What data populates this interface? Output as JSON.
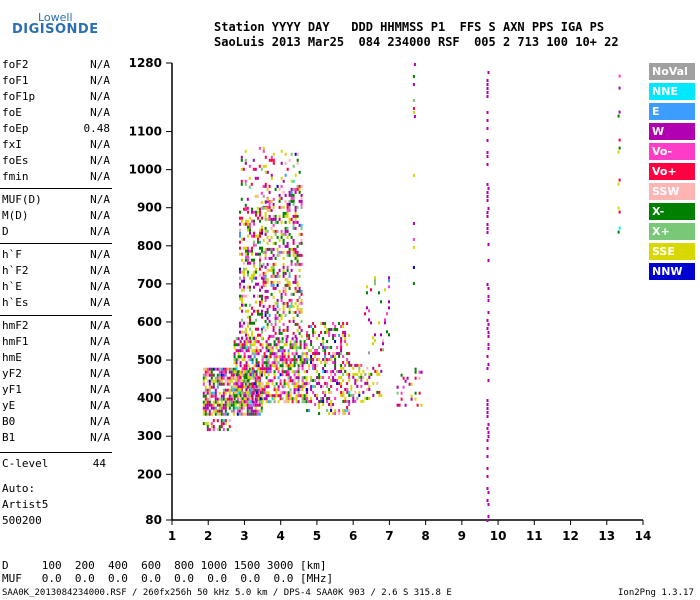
{
  "logo": {
    "line1": "Lowell",
    "line2": "DIGISONDE"
  },
  "header": {
    "row1": "Station YYYY DAY   DDD HHMMSS P1  FFS S AXN PPS IGA PS",
    "row2": "SaoLuis 2013 Mar25  084 234000 RSF  005 2 713 100 10+ 22"
  },
  "params_group1": [
    {
      "name": "foF2",
      "value": "N/A"
    },
    {
      "name": "foF1",
      "value": "N/A"
    },
    {
      "name": "foF1p",
      "value": "N/A"
    },
    {
      "name": "foE",
      "value": "N/A"
    },
    {
      "name": "foEp",
      "value": "0.48"
    },
    {
      "name": "fxI",
      "value": "N/A"
    },
    {
      "name": "foEs",
      "value": "N/A"
    },
    {
      "name": "fmin",
      "value": "N/A"
    }
  ],
  "params_group2": [
    {
      "name": "MUF(D)",
      "value": "N/A"
    },
    {
      "name": "M(D)",
      "value": "N/A"
    },
    {
      "name": "D",
      "value": "N/A"
    }
  ],
  "params_group3": [
    {
      "name": "h`F",
      "value": "N/A"
    },
    {
      "name": "h`F2",
      "value": "N/A"
    },
    {
      "name": "h`E",
      "value": "N/A"
    },
    {
      "name": "h`Es",
      "value": "N/A"
    }
  ],
  "params_group4": [
    {
      "name": "hmF2",
      "value": "N/A"
    },
    {
      "name": "hmF1",
      "value": "N/A"
    },
    {
      "name": "hmE",
      "value": "N/A"
    },
    {
      "name": "yF2",
      "value": "N/A"
    },
    {
      "name": "yF1",
      "value": "N/A"
    },
    {
      "name": "yE",
      "value": "N/A"
    },
    {
      "name": "B0",
      "value": "N/A"
    },
    {
      "name": "B1",
      "value": "N/A"
    }
  ],
  "clevel": {
    "name": "C-level",
    "value": "44"
  },
  "auto": [
    "Auto:",
    "Artist5",
    "500200"
  ],
  "footer": {
    "d_row": "D     100  200  400  600  800 1000 1500 3000 [km]",
    "muf_row": "MUF   0.0  0.0  0.0  0.0  0.0  0.0  0.0  0.0 [MHz]",
    "info_row": "SAA0K_2013084234000.RSF / 260fx256h 50 kHz 5.0 km / DPS-4 SAA0K 903 / 2.6 S 315.8 E",
    "version": "Ion2Png 1.3.17"
  },
  "legend": [
    {
      "label": "NoVal",
      "color": "#a0a0a0"
    },
    {
      "label": "NNE",
      "color": "#00e8ff"
    },
    {
      "label": "E",
      "color": "#3c9cff"
    },
    {
      "label": "W",
      "color": "#b000b0"
    },
    {
      "label": "Vo-",
      "color": "#ff3cc8"
    },
    {
      "label": "Vo+",
      "color": "#ff0040"
    },
    {
      "label": "SSW",
      "color": "#ffb4b4"
    },
    {
      "label": "X-",
      "color": "#008000"
    },
    {
      "label": "X+",
      "color": "#78c878"
    },
    {
      "label": "SSE",
      "color": "#d8d800"
    },
    {
      "label": "NNW",
      "color": "#0000d0"
    }
  ],
  "chart_data": {
    "type": "scatter",
    "title": "",
    "xlabel": "",
    "ylabel": "",
    "xlim": [
      1,
      14
    ],
    "ylim": [
      80,
      1280
    ],
    "xticks": [
      "1",
      "2",
      "3",
      "4",
      "5",
      "6",
      "7",
      "8",
      "9",
      "10",
      "11",
      "12",
      "13",
      "14"
    ],
    "yticks": [
      "80",
      "200",
      "300",
      "400",
      "500",
      "600",
      "700",
      "800",
      "900",
      "1000",
      "1100",
      "1280"
    ],
    "grid": false,
    "legend_position": "right",
    "clusters": [
      {
        "x": [
          1.85,
          2.6
        ],
        "y": [
          315,
          345
        ],
        "density": 0.45
      },
      {
        "x": [
          1.85,
          3.5
        ],
        "y": [
          360,
          480
        ],
        "density": 0.75
      },
      {
        "x": [
          2.7,
          4.7
        ],
        "y": [
          390,
          560
        ],
        "density": 0.6
      },
      {
        "x": [
          2.85,
          3.5
        ],
        "y": [
          560,
          900
        ],
        "density": 0.4
      },
      {
        "x": [
          3.5,
          4.6
        ],
        "y": [
          560,
          960
        ],
        "density": 0.35
      },
      {
        "x": [
          2.9,
          3.8
        ],
        "y": [
          900,
          1060
        ],
        "density": 0.12
      },
      {
        "x": [
          4.0,
          4.5
        ],
        "y": [
          950,
          1060
        ],
        "density": 0.12
      },
      {
        "x": [
          4.7,
          5.9
        ],
        "y": [
          360,
          600
        ],
        "density": 0.35
      },
      {
        "x": [
          5.7,
          6.8
        ],
        "y": [
          390,
          490
        ],
        "density": 0.25
      },
      {
        "x": [
          6.3,
          7.0
        ],
        "y": [
          520,
          720
        ],
        "density": 0.1
      },
      {
        "x": [
          7.2,
          7.9
        ],
        "y": [
          380,
          480
        ],
        "density": 0.12
      }
    ],
    "columns": [
      {
        "x": 7.65,
        "y": [
          1130,
          1280
        ],
        "density": 0.25
      },
      {
        "x": 7.65,
        "y": [
          700,
          1020
        ],
        "density": 0.15
      },
      {
        "x": 9.68,
        "y": [
          80,
          1280
        ],
        "density": 0.55
      },
      {
        "x": 13.3,
        "y": [
          780,
          1260
        ],
        "density": 0.3
      }
    ]
  }
}
